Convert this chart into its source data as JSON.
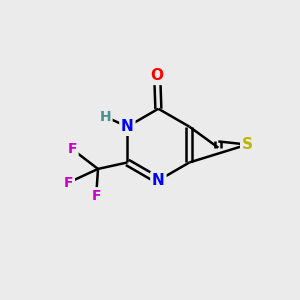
{
  "background_color": "#ebebeb",
  "bond_color": "#000000",
  "atom_colors": {
    "O": "#ff0000",
    "N": "#0000ff",
    "S": "#b8b800",
    "F": "#cc00cc",
    "H": "#4a9090"
  },
  "figsize": [
    3.0,
    3.0
  ],
  "dpi": 100,
  "xlim": [
    0,
    10
  ],
  "ylim": [
    0,
    10
  ]
}
